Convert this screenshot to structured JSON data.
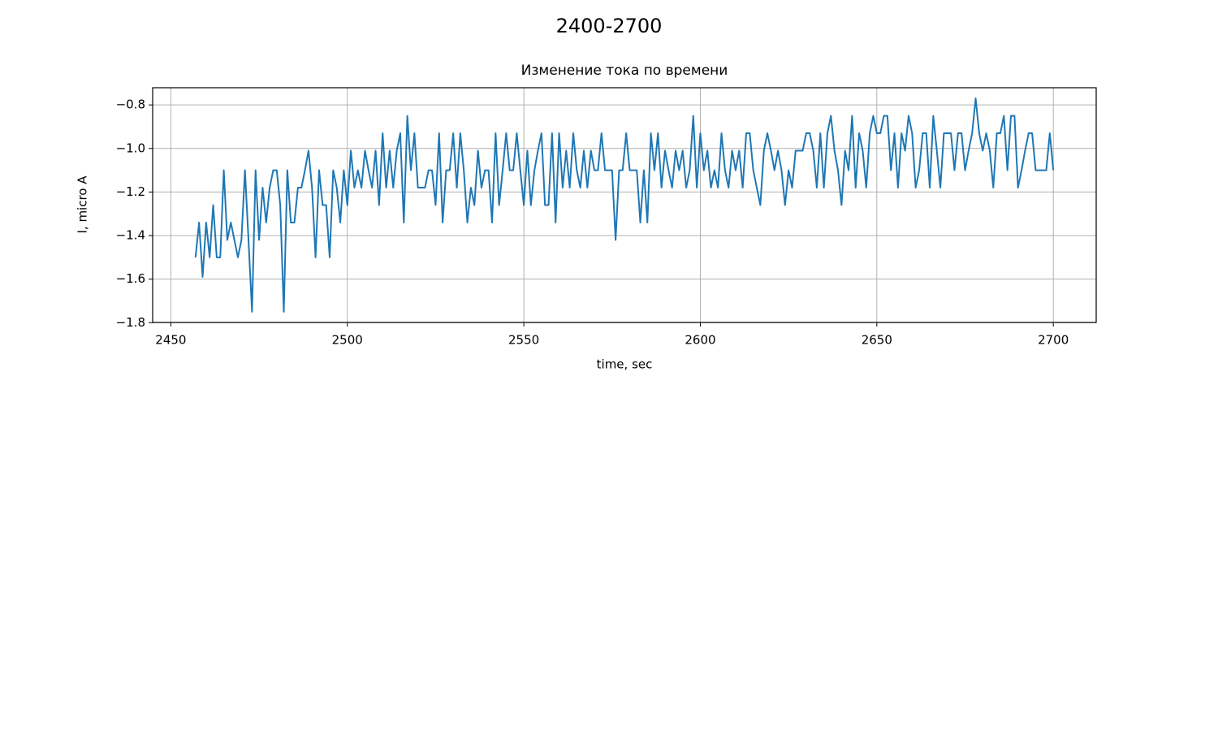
{
  "chart_data": {
    "type": "line",
    "suptitle": "2400-2700",
    "title": "Изменение тока по времени",
    "xlabel": "time, sec",
    "ylabel": "I, micro A",
    "grid": true,
    "xlim": [
      2444.85,
      2712.15
    ],
    "xticks": [
      2450,
      2500,
      2550,
      2600,
      2650,
      2700
    ],
    "ylim": [
      -1.799,
      -0.721
    ],
    "yticks": [
      {
        "value": -1.8,
        "label": "−1.8"
      },
      {
        "value": -1.6,
        "label": "−1.6"
      },
      {
        "value": -1.4,
        "label": "−1.4"
      },
      {
        "value": -1.2,
        "label": "−1.2"
      },
      {
        "value": -1.0,
        "label": "−1.0"
      },
      {
        "value": -0.8,
        "label": "−0.8"
      }
    ],
    "x": [
      2457,
      2458,
      2459,
      2460,
      2461,
      2462,
      2463,
      2464,
      2465,
      2466,
      2467,
      2468,
      2469,
      2470,
      2471,
      2472,
      2473,
      2474,
      2475,
      2476,
      2477,
      2478,
      2479,
      2480,
      2481,
      2482,
      2483,
      2484,
      2485,
      2486,
      2487,
      2488,
      2489,
      2490,
      2491,
      2492,
      2493,
      2494,
      2495,
      2496,
      2497,
      2498,
      2499,
      2500,
      2501,
      2502,
      2503,
      2504,
      2505,
      2506,
      2507,
      2508,
      2509,
      2510,
      2511,
      2512,
      2513,
      2514,
      2515,
      2516,
      2517,
      2518,
      2519,
      2520,
      2521,
      2522,
      2523,
      2524,
      2525,
      2526,
      2527,
      2528,
      2529,
      2530,
      2531,
      2532,
      2533,
      2534,
      2535,
      2536,
      2537,
      2538,
      2539,
      2540,
      2541,
      2542,
      2543,
      2544,
      2545,
      2546,
      2547,
      2548,
      2549,
      2550,
      2551,
      2552,
      2553,
      2554,
      2555,
      2556,
      2557,
      2558,
      2559,
      2560,
      2561,
      2562,
      2563,
      2564,
      2565,
      2566,
      2567,
      2568,
      2569,
      2570,
      2571,
      2572,
      2573,
      2574,
      2575,
      2576,
      2577,
      2578,
      2579,
      2580,
      2581,
      2582,
      2583,
      2584,
      2585,
      2586,
      2587,
      2588,
      2589,
      2590,
      2591,
      2592,
      2593,
      2594,
      2595,
      2596,
      2597,
      2598,
      2599,
      2600,
      2601,
      2602,
      2603,
      2604,
      2605,
      2606,
      2607,
      2608,
      2609,
      2610,
      2611,
      2612,
      2613,
      2614,
      2615,
      2616,
      2617,
      2618,
      2619,
      2620,
      2621,
      2622,
      2623,
      2624,
      2625,
      2626,
      2627,
      2628,
      2629,
      2630,
      2631,
      2632,
      2633,
      2634,
      2635,
      2636,
      2637,
      2638,
      2639,
      2640,
      2641,
      2642,
      2643,
      2644,
      2645,
      2646,
      2647,
      2648,
      2649,
      2650,
      2651,
      2652,
      2653,
      2654,
      2655,
      2656,
      2657,
      2658,
      2659,
      2660,
      2661,
      2662,
      2663,
      2664,
      2665,
      2666,
      2667,
      2668,
      2669,
      2670,
      2671,
      2672,
      2673,
      2674,
      2675,
      2676,
      2677,
      2678,
      2679,
      2680,
      2681,
      2682,
      2683,
      2684,
      2685,
      2686,
      2687,
      2688,
      2689,
      2690,
      2691,
      2692,
      2693,
      2694,
      2695,
      2696,
      2697,
      2698,
      2699,
      2700
    ],
    "series": [
      {
        "color": "#1f77b4",
        "values": [
          -1.5,
          -1.34,
          -1.59,
          -1.34,
          -1.5,
          -1.26,
          -1.5,
          -1.5,
          -1.1,
          -1.42,
          -1.34,
          -1.42,
          -1.5,
          -1.42,
          -1.1,
          -1.42,
          -1.75,
          -1.1,
          -1.42,
          -1.18,
          -1.34,
          -1.18,
          -1.1,
          -1.1,
          -1.26,
          -1.75,
          -1.1,
          -1.34,
          -1.34,
          -1.18,
          -1.18,
          -1.1,
          -1.01,
          -1.18,
          -1.5,
          -1.1,
          -1.26,
          -1.26,
          -1.5,
          -1.1,
          -1.18,
          -1.34,
          -1.1,
          -1.26,
          -1.01,
          -1.18,
          -1.1,
          -1.18,
          -1.01,
          -1.1,
          -1.18,
          -1.01,
          -1.26,
          -0.93,
          -1.18,
          -1.01,
          -1.18,
          -1.01,
          -0.93,
          -1.34,
          -0.85,
          -1.1,
          -0.93,
          -1.18,
          -1.18,
          -1.18,
          -1.1,
          -1.1,
          -1.26,
          -0.93,
          -1.34,
          -1.1,
          -1.1,
          -0.93,
          -1.18,
          -0.93,
          -1.1,
          -1.34,
          -1.18,
          -1.26,
          -1.01,
          -1.18,
          -1.1,
          -1.1,
          -1.34,
          -0.93,
          -1.26,
          -1.1,
          -0.93,
          -1.1,
          -1.1,
          -0.93,
          -1.1,
          -1.26,
          -1.01,
          -1.26,
          -1.1,
          -1.01,
          -0.93,
          -1.26,
          -1.26,
          -0.93,
          -1.34,
          -0.93,
          -1.18,
          -1.01,
          -1.18,
          -0.93,
          -1.1,
          -1.18,
          -1.01,
          -1.18,
          -1.01,
          -1.1,
          -1.1,
          -0.93,
          -1.1,
          -1.1,
          -1.1,
          -1.42,
          -1.1,
          -1.1,
          -0.93,
          -1.1,
          -1.1,
          -1.1,
          -1.34,
          -1.1,
          -1.34,
          -0.93,
          -1.1,
          -0.93,
          -1.18,
          -1.01,
          -1.1,
          -1.18,
          -1.01,
          -1.1,
          -1.01,
          -1.18,
          -1.1,
          -0.85,
          -1.18,
          -0.93,
          -1.1,
          -1.01,
          -1.18,
          -1.1,
          -1.18,
          -0.93,
          -1.1,
          -1.18,
          -1.01,
          -1.1,
          -1.01,
          -1.18,
          -0.93,
          -0.93,
          -1.1,
          -1.18,
          -1.26,
          -1.01,
          -0.93,
          -1.01,
          -1.1,
          -1.01,
          -1.1,
          -1.26,
          -1.1,
          -1.18,
          -1.01,
          -1.01,
          -1.01,
          -0.93,
          -0.93,
          -1.01,
          -1.18,
          -0.93,
          -1.18,
          -0.93,
          -0.85,
          -1.01,
          -1.1,
          -1.26,
          -1.01,
          -1.1,
          -0.85,
          -1.18,
          -0.93,
          -1.01,
          -1.18,
          -0.93,
          -0.85,
          -0.93,
          -0.93,
          -0.85,
          -0.85,
          -1.1,
          -0.93,
          -1.18,
          -0.93,
          -1.01,
          -0.85,
          -0.93,
          -1.18,
          -1.1,
          -0.93,
          -0.93,
          -1.18,
          -0.85,
          -1.01,
          -1.18,
          -0.93,
          -0.93,
          -0.93,
          -1.1,
          -0.93,
          -0.93,
          -1.1,
          -1.01,
          -0.93,
          -0.77,
          -0.93,
          -1.01,
          -0.93,
          -1.01,
          -1.18,
          -0.93,
          -0.93,
          -0.85,
          -1.1,
          -0.85,
          -0.85,
          -1.18,
          -1.1,
          -1.01,
          -0.93,
          -0.93,
          -1.1,
          -1.1,
          -1.1,
          -1.1,
          -0.93,
          -1.1
        ]
      }
    ]
  }
}
